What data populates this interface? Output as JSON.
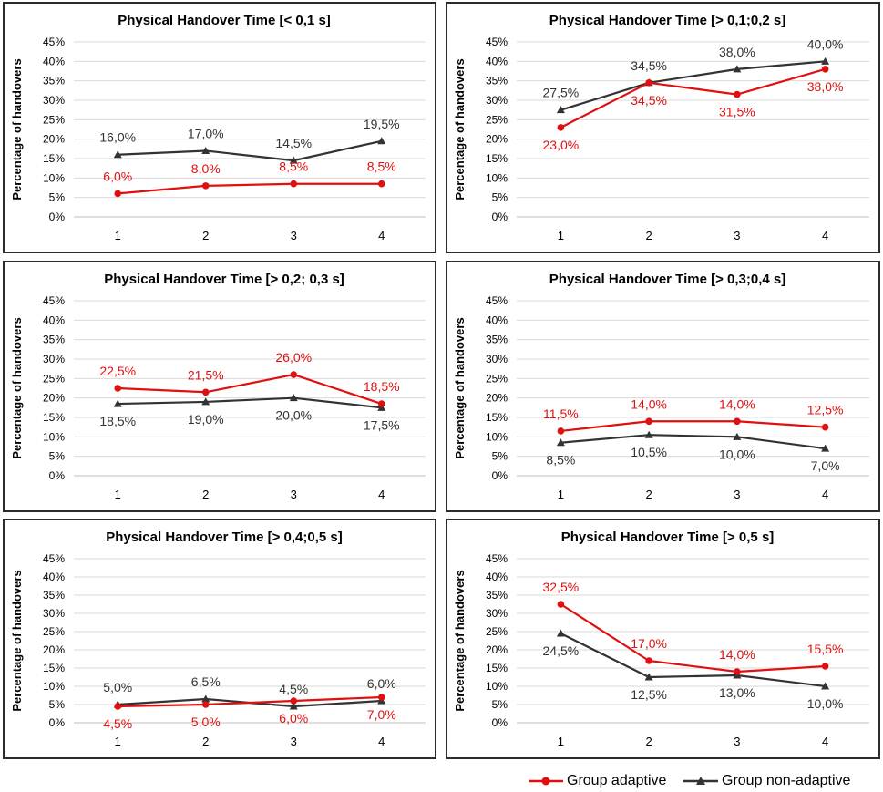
{
  "legend": {
    "adaptive_label": "Group adaptive",
    "nonadaptive_label": "Group non-adaptive"
  },
  "colors": {
    "adaptive": "#e01010",
    "nonadaptive": "#333333",
    "grid": "#d9d9d9",
    "axis": "#bfbfbf"
  },
  "chart_data": [
    {
      "type": "line",
      "title": "Physical Handover Time [< 0,1 s]",
      "ylabel": "Percentage of handovers",
      "categories": [
        "1",
        "2",
        "3",
        "4"
      ],
      "ylim": [
        0,
        45
      ],
      "yticks": [
        "0%",
        "5%",
        "10%",
        "15%",
        "20%",
        "25%",
        "30%",
        "35%",
        "40%",
        "45%"
      ],
      "series": [
        {
          "name": "Group adaptive",
          "values": [
            6.0,
            8.0,
            8.5,
            8.5
          ],
          "labels": [
            "6,0%",
            "8,0%",
            "8,5%",
            "8,5%"
          ],
          "label_pos": [
            "above",
            "above",
            "above",
            "above"
          ]
        },
        {
          "name": "Group non-adaptive",
          "values": [
            16.0,
            17.0,
            14.5,
            19.5
          ],
          "labels": [
            "16,0%",
            "17,0%",
            "14,5%",
            "19,5%"
          ],
          "label_pos": [
            "above",
            "above",
            "above",
            "above"
          ]
        }
      ]
    },
    {
      "type": "line",
      "title": "Physical Handover Time [> 0,1;0,2 s]",
      "ylabel": "Percentage of handovers",
      "categories": [
        "1",
        "2",
        "3",
        "4"
      ],
      "ylim": [
        0,
        45
      ],
      "yticks": [
        "0%",
        "5%",
        "10%",
        "15%",
        "20%",
        "25%",
        "30%",
        "35%",
        "40%",
        "45%"
      ],
      "series": [
        {
          "name": "Group adaptive",
          "values": [
            23.0,
            34.5,
            31.5,
            38.0
          ],
          "labels": [
            "23,0%",
            "34,5%",
            "31,5%",
            "38,0%"
          ],
          "label_pos": [
            "below",
            "below",
            "below",
            "below"
          ]
        },
        {
          "name": "Group non-adaptive",
          "values": [
            27.5,
            34.5,
            38.0,
            40.0
          ],
          "labels": [
            "27,5%",
            "34,5%",
            "38,0%",
            "40,0%"
          ],
          "label_pos": [
            "above",
            "above",
            "above",
            "above"
          ]
        }
      ]
    },
    {
      "type": "line",
      "title": "Physical Handover Time [> 0,2; 0,3 s]",
      "ylabel": "Percentage of handovers",
      "categories": [
        "1",
        "2",
        "3",
        "4"
      ],
      "ylim": [
        0,
        45
      ],
      "yticks": [
        "0%",
        "5%",
        "10%",
        "15%",
        "20%",
        "25%",
        "30%",
        "35%",
        "40%",
        "45%"
      ],
      "series": [
        {
          "name": "Group adaptive",
          "values": [
            22.5,
            21.5,
            26.0,
            18.5
          ],
          "labels": [
            "22,5%",
            "21,5%",
            "26,0%",
            "18,5%"
          ],
          "label_pos": [
            "above",
            "above",
            "above",
            "above"
          ]
        },
        {
          "name": "Group non-adaptive",
          "values": [
            18.5,
            19.0,
            20.0,
            17.5
          ],
          "labels": [
            "18,5%",
            "19,0%",
            "20,0%",
            "17,5%"
          ],
          "label_pos": [
            "below",
            "below",
            "below",
            "below"
          ]
        }
      ]
    },
    {
      "type": "line",
      "title": "Physical Handover Time [> 0,3;0,4 s]",
      "ylabel": "Percentage of handovers",
      "categories": [
        "1",
        "2",
        "3",
        "4"
      ],
      "ylim": [
        0,
        45
      ],
      "yticks": [
        "0%",
        "5%",
        "10%",
        "15%",
        "20%",
        "25%",
        "30%",
        "35%",
        "40%",
        "45%"
      ],
      "series": [
        {
          "name": "Group adaptive",
          "values": [
            11.5,
            14.0,
            14.0,
            12.5
          ],
          "labels": [
            "11,5%",
            "14,0%",
            "14,0%",
            "12,5%"
          ],
          "label_pos": [
            "above",
            "above",
            "above",
            "above"
          ]
        },
        {
          "name": "Group non-adaptive",
          "values": [
            8.5,
            10.5,
            10.0,
            7.0
          ],
          "labels": [
            "8,5%",
            "10,5%",
            "10,0%",
            "7,0%"
          ],
          "label_pos": [
            "below",
            "below",
            "below",
            "below"
          ]
        }
      ]
    },
    {
      "type": "line",
      "title": "Physical Handover Time [> 0,4;0,5 s]",
      "ylabel": "Percentage of handovers",
      "categories": [
        "1",
        "2",
        "3",
        "4"
      ],
      "ylim": [
        0,
        45
      ],
      "yticks": [
        "0%",
        "5%",
        "10%",
        "15%",
        "20%",
        "25%",
        "30%",
        "35%",
        "40%",
        "45%"
      ],
      "series": [
        {
          "name": "Group adaptive",
          "values": [
            4.5,
            5.0,
            6.0,
            7.0
          ],
          "labels": [
            "4,5%",
            "5,0%",
            "6,0%",
            "7,0%"
          ],
          "label_pos": [
            "below",
            "below",
            "below",
            "below"
          ]
        },
        {
          "name": "Group non-adaptive",
          "values": [
            5.0,
            6.5,
            4.5,
            6.0
          ],
          "labels": [
            "5,0%",
            "6,5%",
            "4,5%",
            "6,0%"
          ],
          "label_pos": [
            "above",
            "above",
            "above",
            "above"
          ]
        }
      ]
    },
    {
      "type": "line",
      "title": "Physical Handover Time [> 0,5 s]",
      "ylabel": "Percentage of handovers",
      "categories": [
        "1",
        "2",
        "3",
        "4"
      ],
      "ylim": [
        0,
        45
      ],
      "yticks": [
        "0%",
        "5%",
        "10%",
        "15%",
        "20%",
        "25%",
        "30%",
        "35%",
        "40%",
        "45%"
      ],
      "series": [
        {
          "name": "Group adaptive",
          "values": [
            32.5,
            17.0,
            14.0,
            15.5
          ],
          "labels": [
            "32,5%",
            "17,0%",
            "14,0%",
            "15,5%"
          ],
          "label_pos": [
            "above",
            "above",
            "above",
            "above"
          ]
        },
        {
          "name": "Group non-adaptive",
          "values": [
            24.5,
            12.5,
            13.0,
            10.0
          ],
          "labels": [
            "24,5%",
            "12,5%",
            "13,0%",
            "10,0%"
          ],
          "label_pos": [
            "below",
            "below",
            "below",
            "below"
          ]
        }
      ]
    }
  ]
}
